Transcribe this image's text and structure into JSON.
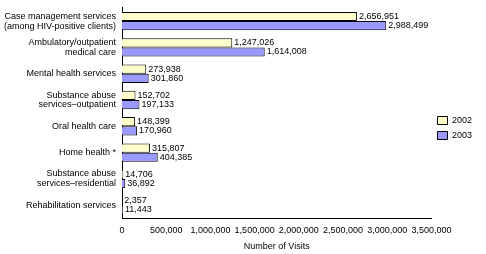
{
  "chart_data": {
    "type": "bar",
    "orientation": "horizontal",
    "x_label": "Number of Visits",
    "categories": [
      "Case management services (among HIV-positive clients)",
      "Ambulatory/outpatient medical care",
      "Mental health services",
      "Substance abuse services–outpatient",
      "Oral health care",
      "Home health *",
      "Substance abuse services–residential",
      "Rehabilitation services"
    ],
    "series": [
      {
        "name": "2002",
        "color": "#ffffcc",
        "values": [
          2656951,
          1247026,
          273938,
          152702,
          148399,
          315807,
          14706,
          2357
        ],
        "value_labels": [
          "2,656,951",
          "1,247,026",
          "273,938",
          "152,702",
          "148,399",
          "315,807",
          "14,706",
          "2,357"
        ]
      },
      {
        "name": "2003",
        "color": "#9999ff",
        "values": [
          2988499,
          1614008,
          301860,
          197133,
          170960,
          404385,
          36892,
          11443
        ],
        "value_labels": [
          "2,988,499",
          "1,614,008",
          "301,860",
          "197,133",
          "170,960",
          "404,385",
          "36,892",
          "11,443"
        ]
      }
    ],
    "xlim": [
      0,
      3500000
    ],
    "xticks": [
      0,
      {
        "value": 500000,
        "label": "500,000"
      },
      {
        "value": 1000000,
        "label": "1,000,000"
      },
      {
        "value": 1500000,
        "label": "1,500,000"
      },
      {
        "value": 2000000,
        "label": "2,000,000"
      },
      {
        "value": 2500000,
        "label": "2,500,000"
      },
      {
        "value": 3000000,
        "label": "3,000,000"
      },
      {
        "value": 3500000,
        "label": "3,500,000"
      }
    ],
    "grid": false,
    "legend": "right",
    "data_labels": true
  }
}
